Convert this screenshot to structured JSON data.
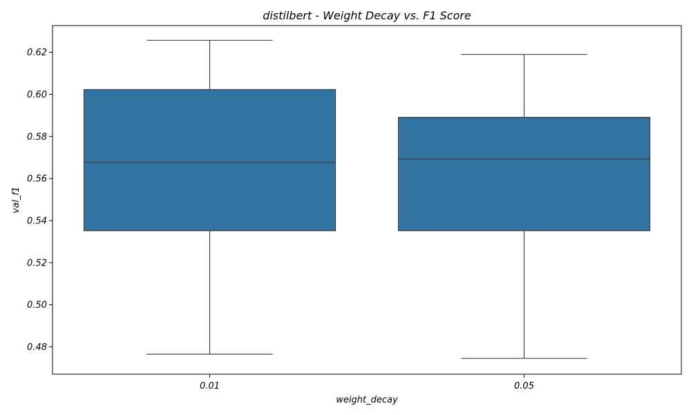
{
  "chart_data": {
    "type": "box",
    "title": "distilbert - Weight Decay vs. F1 Score",
    "xlabel": "weight_decay",
    "ylabel": "val_f1",
    "categories": [
      "0.01",
      "0.05"
    ],
    "boxes": [
      {
        "category": "0.01",
        "whisker_low": 0.4765,
        "q1": 0.5352,
        "median": 0.5677,
        "q3": 0.6023,
        "whisker_high": 0.6257
      },
      {
        "category": "0.05",
        "whisker_low": 0.4745,
        "q1": 0.5352,
        "median": 0.5692,
        "q3": 0.5891,
        "whisker_high": 0.619
      }
    ],
    "ylim": [
      0.467,
      0.6327
    ],
    "yticks": [
      "0.48",
      "0.50",
      "0.52",
      "0.54",
      "0.56",
      "0.58",
      "0.60",
      "0.62"
    ],
    "grid": false,
    "colors": {
      "box_fill": "#3274a1",
      "line": "#3f3f3f",
      "frame": "#000000"
    }
  }
}
